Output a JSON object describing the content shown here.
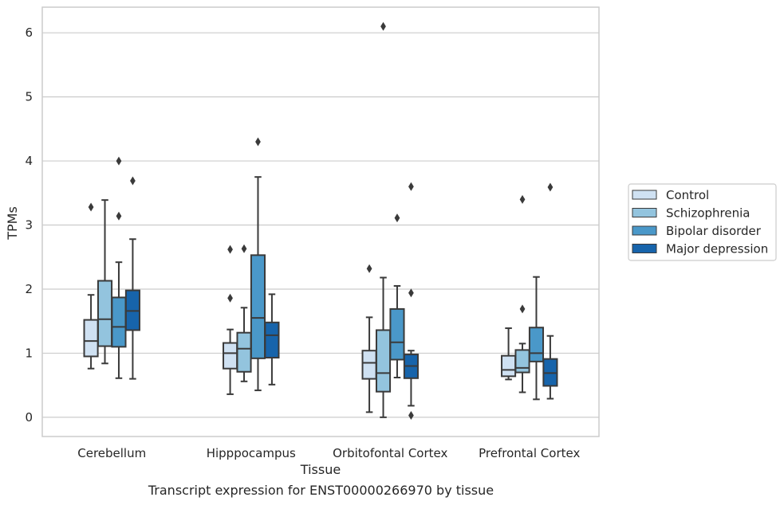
{
  "caption": "Transcript expression for ENST00000266970 by tissue",
  "colors": {
    "Control": "#cfe1f2",
    "Schizophrenia": "#93c4de",
    "Bipolar disorder": "#4a98c9",
    "Major depression": "#1764ab",
    "line": "#3a3a3a",
    "grid": "#cccccc",
    "frame": "#cccccc"
  },
  "chart_data": {
    "type": "box",
    "xlabel": "Tissue",
    "ylabel": "TPMs",
    "ylim": [
      -0.3,
      6.4
    ],
    "yticks": [
      0,
      1,
      2,
      3,
      4,
      5,
      6
    ],
    "grid": "horizontal",
    "legend_position": "right",
    "categories": [
      "Cerebellum",
      "Hipppocampus",
      "Orbitofontal Cortex",
      "Prefrontal Cortex"
    ],
    "series": [
      {
        "name": "Control",
        "boxes": [
          {
            "whisker_low": 0.76,
            "q1": 0.95,
            "median": 1.19,
            "q3": 1.52,
            "whisker_high": 1.91,
            "outliers": [
              3.28
            ]
          },
          {
            "whisker_low": 0.36,
            "q1": 0.76,
            "median": 1.0,
            "q3": 1.16,
            "whisker_high": 1.37,
            "outliers": [
              2.62,
              1.86
            ]
          },
          {
            "whisker_low": 0.08,
            "q1": 0.6,
            "median": 0.85,
            "q3": 1.04,
            "whisker_high": 1.56,
            "outliers": [
              2.32
            ]
          },
          {
            "whisker_low": 0.59,
            "q1": 0.64,
            "median": 0.74,
            "q3": 0.96,
            "whisker_high": 1.39,
            "outliers": []
          }
        ]
      },
      {
        "name": "Schizophrenia",
        "boxes": [
          {
            "whisker_low": 0.84,
            "q1": 1.11,
            "median": 1.53,
            "q3": 2.13,
            "whisker_high": 3.39,
            "outliers": []
          },
          {
            "whisker_low": 0.56,
            "q1": 0.71,
            "median": 1.07,
            "q3": 1.32,
            "whisker_high": 1.71,
            "outliers": [
              2.63
            ]
          },
          {
            "whisker_low": 0.0,
            "q1": 0.4,
            "median": 0.69,
            "q3": 1.36,
            "whisker_high": 2.18,
            "outliers": [
              6.1
            ]
          },
          {
            "whisker_low": 0.39,
            "q1": 0.7,
            "median": 0.77,
            "q3": 1.05,
            "whisker_high": 1.15,
            "outliers": [
              3.4,
              1.69
            ]
          }
        ]
      },
      {
        "name": "Bipolar disorder",
        "boxes": [
          {
            "whisker_low": 0.61,
            "q1": 1.1,
            "median": 1.41,
            "q3": 1.87,
            "whisker_high": 2.42,
            "outliers": [
              4.0,
              3.14
            ]
          },
          {
            "whisker_low": 0.42,
            "q1": 0.92,
            "median": 1.55,
            "q3": 2.53,
            "whisker_high": 3.75,
            "outliers": [
              4.3
            ]
          },
          {
            "whisker_low": 0.62,
            "q1": 0.9,
            "median": 1.17,
            "q3": 1.69,
            "whisker_high": 2.05,
            "outliers": [
              3.11
            ]
          },
          {
            "whisker_low": 0.28,
            "q1": 0.87,
            "median": 1.0,
            "q3": 1.4,
            "whisker_high": 2.19,
            "outliers": []
          }
        ]
      },
      {
        "name": "Major depression",
        "boxes": [
          {
            "whisker_low": 0.6,
            "q1": 1.36,
            "median": 1.66,
            "q3": 1.98,
            "whisker_high": 2.78,
            "outliers": [
              3.69
            ]
          },
          {
            "whisker_low": 0.51,
            "q1": 0.93,
            "median": 1.28,
            "q3": 1.48,
            "whisker_high": 1.92,
            "outliers": []
          },
          {
            "whisker_low": 0.18,
            "q1": 0.61,
            "median": 0.8,
            "q3": 0.98,
            "whisker_high": 1.04,
            "outliers": [
              3.6,
              1.94,
              0.03
            ]
          },
          {
            "whisker_low": 0.29,
            "q1": 0.49,
            "median": 0.69,
            "q3": 0.91,
            "whisker_high": 1.27,
            "outliers": [
              3.59
            ]
          }
        ]
      }
    ]
  }
}
